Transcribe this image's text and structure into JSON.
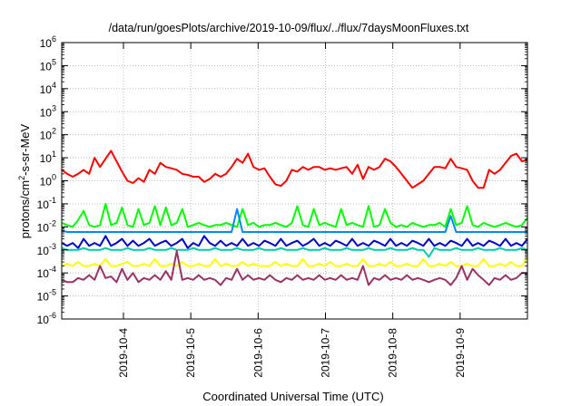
{
  "chart_data": {
    "type": "line",
    "title": "/data/run/goesPlots/archive/2019-10-09/flux/../flux/7daysMoonFluxes.txt",
    "xlabel": "Coordinated Universal Time (UTC)",
    "ylabel": "protons/cm2-s-sr-MeV",
    "ylabel_parts": {
      "pre": "protons/cm",
      "sup": "2",
      "post": "-s-sr-MeV"
    },
    "y_scale": "log",
    "ylim_exponents": [
      -6,
      6
    ],
    "ytick_labels": [
      {
        "base": "10",
        "exp": "-6"
      },
      {
        "base": "10",
        "exp": "-5"
      },
      {
        "base": "10",
        "exp": "-4"
      },
      {
        "base": "10",
        "exp": "-3"
      },
      {
        "base": "10",
        "exp": "-2"
      },
      {
        "base": "10",
        "exp": "-1"
      },
      {
        "base": "10",
        "exp": "0"
      },
      {
        "base": "10",
        "exp": "1"
      },
      {
        "base": "10",
        "exp": "2"
      },
      {
        "base": "10",
        "exp": "3"
      },
      {
        "base": "10",
        "exp": "4"
      },
      {
        "base": "10",
        "exp": "5"
      },
      {
        "base": "10",
        "exp": "6"
      }
    ],
    "xlim": [
      "2019-10-03T02:00",
      "2019-10-10T00:00"
    ],
    "xtick_labels": [
      "2019-10-4",
      "2019-10-5",
      "2019-10-6",
      "2019-10-7",
      "2019-10-8",
      "2019-10-9"
    ],
    "grid": true,
    "series": [
      {
        "color": "#ff0000",
        "values": [
          3,
          2,
          1.5,
          2,
          3,
          2,
          10,
          4,
          9,
          20,
          7,
          2.5,
          1,
          0.8,
          1.3,
          0.9,
          3,
          2,
          6,
          4,
          3.5,
          3,
          2,
          1.8,
          1.5,
          1.5,
          0.9,
          1.2,
          2,
          1.5,
          2,
          4,
          9,
          6,
          15,
          4,
          3,
          3.5,
          1.5,
          0.7,
          0.6,
          1,
          3,
          2.5,
          4,
          3,
          4,
          4,
          3,
          3.5,
          3,
          3.5,
          4,
          2,
          5,
          1.2,
          4,
          3,
          4,
          9,
          7,
          4,
          2,
          1,
          0.5,
          0.7,
          1,
          2,
          4,
          4,
          3.5,
          9,
          4,
          3.5,
          3,
          1,
          0.5,
          0.5,
          3,
          2,
          3,
          6,
          12,
          15,
          7,
          8
        ]
      },
      {
        "color": "#00ff00",
        "values": [
          0.015,
          0.012,
          0.01,
          0.02,
          0.05,
          0.012,
          0.01,
          0.012,
          0.1,
          0.012,
          0.015,
          0.07,
          0.012,
          0.01,
          0.06,
          0.012,
          0.015,
          0.08,
          0.012,
          0.07,
          0.012,
          0.015,
          0.06,
          0.01,
          0.012,
          0.015,
          0.012,
          0.01,
          0.012,
          0.012,
          0.015,
          0.012,
          0.01,
          0.06,
          0.012,
          0.015,
          0.01,
          0.012,
          0.012,
          0.015,
          0.012,
          0.01,
          0.015,
          0.08,
          0.012,
          0.01,
          0.06,
          0.012,
          0.015,
          0.012,
          0.01,
          0.06,
          0.012,
          0.015,
          0.012,
          0.01,
          0.08,
          0.01,
          0.012,
          0.06,
          0.015,
          0.01,
          0.012,
          0.01,
          0.015,
          0.012,
          0.01,
          0.012,
          0.012,
          0.015,
          0.01,
          0.06,
          0.012,
          0.015,
          0.08,
          0.012,
          0.01,
          0.015,
          0.012,
          0.01,
          0.012,
          0.015,
          0.012,
          0.01,
          0.012,
          0.025
        ]
      },
      {
        "color": "#0088ff",
        "values": [
          0.007,
          0.006,
          0.006,
          0.006,
          0.006,
          0.006,
          0.006,
          0.006,
          0.006,
          0.006,
          0.006,
          0.006,
          0.006,
          0.006,
          0.006,
          0.006,
          0.006,
          0.006,
          0.006,
          0.006,
          0.006,
          0.006,
          0.006,
          0.006,
          0.006,
          0.006,
          0.006,
          0.006,
          0.006,
          0.006,
          0.006,
          0.006,
          0.06,
          0.006,
          0.006,
          0.006,
          0.006,
          0.006,
          0.006,
          0.006,
          0.006,
          0.006,
          0.006,
          0.006,
          0.006,
          0.006,
          0.006,
          0.006,
          0.006,
          0.006,
          0.006,
          0.006,
          0.006,
          0.006,
          0.006,
          0.006,
          0.006,
          0.006,
          0.006,
          0.006,
          0.006,
          0.006,
          0.006,
          0.006,
          0.006,
          0.006,
          0.006,
          0.006,
          0.006,
          0.006,
          0.006,
          0.03,
          0.006,
          0.006,
          0.006,
          0.006,
          0.006,
          0.006,
          0.006,
          0.006,
          0.006,
          0.006,
          0.006,
          0.006,
          0.006,
          0.006
        ]
      },
      {
        "color": "#0000cc",
        "values": [
          0.002,
          0.0015,
          0.002,
          0.0012,
          0.003,
          0.0015,
          0.002,
          0.0015,
          0.004,
          0.0015,
          0.002,
          0.003,
          0.0015,
          0.0025,
          0.0015,
          0.002,
          0.003,
          0.0015,
          0.002,
          0.0025,
          0.0015,
          0.002,
          0.003,
          0.0012,
          0.002,
          0.0015,
          0.004,
          0.002,
          0.0015,
          0.0025,
          0.0015,
          0.002,
          0.0015,
          0.003,
          0.0015,
          0.002,
          0.0015,
          0.0025,
          0.002,
          0.0015,
          0.003,
          0.0015,
          0.002,
          0.0025,
          0.0015,
          0.002,
          0.003,
          0.0015,
          0.002,
          0.0015,
          0.0025,
          0.002,
          0.0015,
          0.003,
          0.0015,
          0.002,
          0.0015,
          0.0025,
          0.002,
          0.0015,
          0.003,
          0.0015,
          0.002,
          0.0015,
          0.0025,
          0.002,
          0.0015,
          0.003,
          0.0015,
          0.002,
          0.0015,
          0.0025,
          0.002,
          0.0015,
          0.003,
          0.0015,
          0.002,
          0.0015,
          0.0025,
          0.002,
          0.0015,
          0.003,
          0.0015,
          0.002,
          0.0015,
          0.003
        ]
      },
      {
        "color": "#00ccaa",
        "values": [
          0.0012,
          0.001,
          0.001,
          0.001,
          0.0012,
          0.001,
          0.001,
          0.001,
          0.0012,
          0.001,
          0.001,
          0.001,
          0.0012,
          0.001,
          0.001,
          0.001,
          0.0012,
          0.001,
          0.001,
          0.001,
          0.0012,
          0.001,
          0.001,
          0.001,
          0.0012,
          0.001,
          0.001,
          0.001,
          0.0012,
          0.001,
          0.001,
          0.001,
          0.0012,
          0.001,
          0.001,
          0.001,
          0.0012,
          0.001,
          0.001,
          0.001,
          0.0012,
          0.001,
          0.001,
          0.001,
          0.0012,
          0.001,
          0.001,
          0.001,
          0.0012,
          0.001,
          0.001,
          0.001,
          0.0012,
          0.001,
          0.001,
          0.001,
          0.0012,
          0.001,
          0.001,
          0.001,
          0.0012,
          0.001,
          0.001,
          0.001,
          0.0012,
          0.001,
          0.001,
          0.0005,
          0.0012,
          0.001,
          0.001,
          0.001,
          0.0012,
          0.001,
          0.001,
          0.001,
          0.0012,
          0.001,
          0.001,
          0.001,
          0.0012,
          0.001,
          0.001,
          0.001,
          0.0012,
          0.001
        ]
      },
      {
        "color": "#ffff00",
        "values": [
          0.0002,
          0.00025,
          0.0002,
          0.0003,
          0.0002,
          0.0002,
          0.00025,
          0.0002,
          0.0004,
          0.0002,
          0.0002,
          0.00025,
          0.0003,
          0.0002,
          0.0002,
          0.00025,
          0.0002,
          0.0004,
          0.0002,
          0.0002,
          0.00025,
          0.0002,
          0.0003,
          0.0002,
          0.0002,
          0.00025,
          0.0002,
          0.0002,
          0.0004,
          0.0002,
          0.00025,
          0.0002,
          0.0002,
          0.0003,
          0.0002,
          0.00025,
          0.0002,
          0.0002,
          0.0002,
          0.0003,
          0.0002,
          0.00025,
          0.0002,
          0.0002,
          0.0004,
          0.0002,
          0.0002,
          0.00025,
          0.0002,
          0.0003,
          0.0002,
          0.0002,
          0.00025,
          0.0002,
          0.0002,
          0.0004,
          0.0002,
          0.0002,
          0.00025,
          0.0002,
          0.0003,
          0.0002,
          0.0002,
          0.00025,
          0.0002,
          0.0002,
          0.0004,
          0.0002,
          0.0002,
          0.00025,
          0.0002,
          0.0003,
          0.0002,
          0.0002,
          0.00025,
          0.0002,
          0.0002,
          0.0004,
          0.0002,
          0.0002,
          0.00025,
          0.0002,
          0.0003,
          0.0002,
          0.0002,
          0.0005
        ]
      },
      {
        "color": "#993366",
        "values": [
          5e-05,
          4e-05,
          4e-05,
          6e-05,
          5e-05,
          8e-05,
          5e-05,
          0.0002,
          6e-05,
          7e-05,
          4e-05,
          0.00015,
          5e-05,
          0.0001,
          4e-05,
          6e-05,
          5e-05,
          8e-05,
          5e-05,
          0.00012,
          5e-05,
          0.0009,
          5e-05,
          6e-05,
          5e-05,
          8e-05,
          5e-05,
          6e-05,
          5e-05,
          3e-05,
          6e-05,
          5e-05,
          0.00015,
          5e-05,
          8e-05,
          5e-05,
          6e-05,
          5e-05,
          8e-05,
          5e-05,
          4e-05,
          6e-05,
          5e-05,
          8e-05,
          5e-05,
          6e-05,
          5e-05,
          8e-05,
          5e-05,
          6e-05,
          5e-05,
          8e-05,
          5e-05,
          6e-05,
          5e-05,
          0.0002,
          3e-05,
          6e-05,
          5e-05,
          8e-05,
          5e-05,
          6e-05,
          5e-05,
          8e-05,
          5e-05,
          6e-05,
          5e-05,
          4e-05,
          5e-05,
          6e-05,
          5e-05,
          3e-05,
          6e-05,
          0.0002,
          5e-05,
          0.00015,
          8e-05,
          5e-05,
          3e-05,
          6e-05,
          5e-05,
          8e-05,
          5e-05,
          6e-05,
          0.0001,
          0.0001
        ]
      }
    ]
  }
}
